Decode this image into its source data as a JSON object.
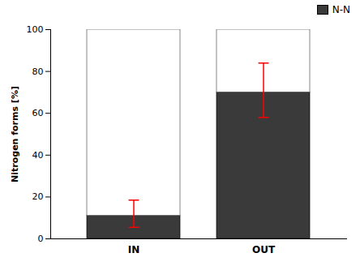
{
  "chart_data": {
    "type": "bar",
    "stacked": true,
    "categories": [
      "IN",
      "OUT"
    ],
    "series": [
      {
        "name": "N-N",
        "color": "#3a3a3a",
        "values": [
          11,
          70
        ],
        "errors": {
          "minus": [
            5.5,
            12
          ],
          "plus": [
            7.5,
            14
          ],
          "color": "red"
        }
      },
      {
        "color": "#ffffff",
        "values": [
          89,
          30
        ]
      }
    ],
    "ylabel": "Nitrogen forms [%]",
    "ylim": [
      0,
      100
    ],
    "yticks": [
      0,
      20,
      40,
      60,
      80,
      100
    ],
    "grid": false,
    "legend": "top-right"
  }
}
